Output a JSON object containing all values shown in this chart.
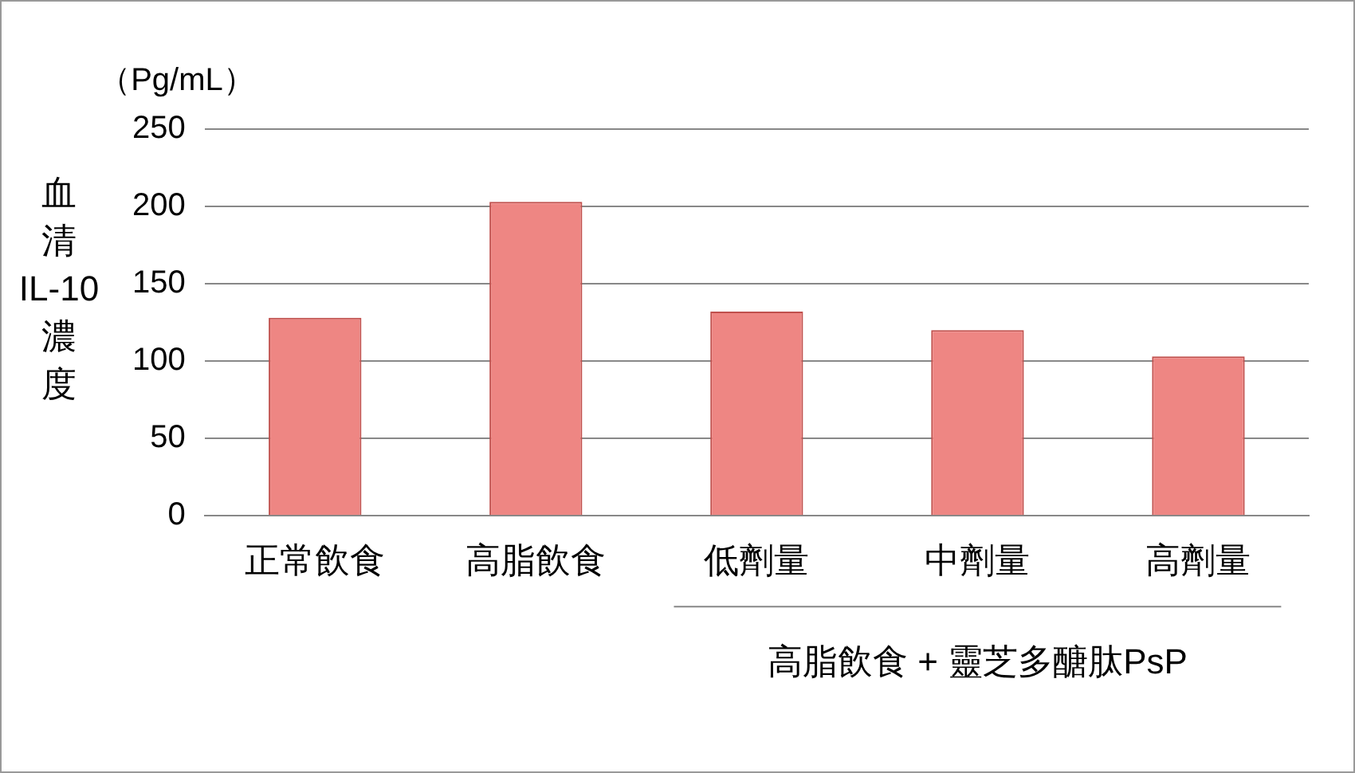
{
  "chart_data": {
    "type": "bar",
    "categories": [
      "正常飲食",
      "高脂飲食",
      "低劑量",
      "中劑量",
      "高劑量"
    ],
    "values": [
      128,
      203,
      132,
      120,
      103
    ],
    "color": "#ee8683",
    "ylabel": "血清IL-10濃度",
    "ylim": [
      0,
      250
    ],
    "yticks": [
      0,
      50,
      100,
      150,
      200,
      250
    ],
    "grid": "y",
    "legend": false,
    "xlabel": "高脂飲食 + 靈芝多醣肽PsP",
    "annotations": [
      "（Pg/mL）"
    ]
  }
}
